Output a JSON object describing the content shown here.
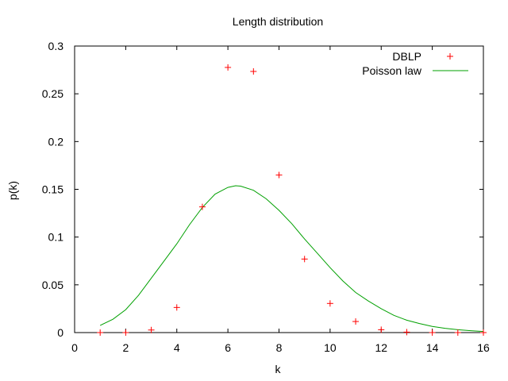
{
  "chart_data": {
    "type": "scatter",
    "title": "Length distribution",
    "xlabel": "k",
    "ylabel": "p(k)",
    "xlim": [
      0,
      16
    ],
    "ylim": [
      0,
      0.3
    ],
    "x_ticks": [
      0,
      2,
      4,
      6,
      8,
      10,
      12,
      14,
      16
    ],
    "x_tick_labels": [
      "0",
      "2",
      "4",
      "6",
      "8",
      "10",
      "12",
      "14",
      "16"
    ],
    "y_ticks": [
      0,
      0.05,
      0.1,
      0.15,
      0.2,
      0.25,
      0.3
    ],
    "y_tick_labels": [
      "0",
      "0.05",
      "0.1",
      "0.15",
      "0.2",
      "0.25",
      "0.3"
    ],
    "grid": false,
    "legend_position": "top-right",
    "series": [
      {
        "name": "DBLP",
        "style": "points",
        "marker": "+",
        "color": "#ff0000",
        "x": [
          1,
          2,
          3,
          4,
          5,
          6,
          7,
          8,
          9,
          10,
          11,
          12,
          13,
          14,
          15,
          16
        ],
        "y": [
          0.0,
          0.0,
          0.0027,
          0.0263,
          0.1316,
          0.2776,
          0.2734,
          0.165,
          0.077,
          0.0305,
          0.0116,
          0.003,
          0.0005,
          0.0,
          0.0,
          0.0
        ]
      },
      {
        "name": "Poisson law",
        "style": "line",
        "color": "#00a000",
        "x": [
          1,
          1.5,
          2,
          2.5,
          3,
          3.5,
          4,
          4.5,
          5,
          5.5,
          6,
          6.3,
          6.5,
          7,
          7.5,
          8,
          8.5,
          9,
          9.5,
          10,
          10.5,
          11,
          11.5,
          12,
          12.5,
          13,
          13.5,
          14,
          14.5,
          15,
          15.5,
          16
        ],
        "y": [
          0.0075,
          0.014,
          0.024,
          0.039,
          0.057,
          0.075,
          0.093,
          0.113,
          0.131,
          0.145,
          0.152,
          0.1537,
          0.1533,
          0.149,
          0.14,
          0.128,
          0.114,
          0.098,
          0.083,
          0.068,
          0.054,
          0.042,
          0.033,
          0.025,
          0.018,
          0.013,
          0.0095,
          0.0065,
          0.0045,
          0.003,
          0.002,
          0.0012
        ]
      }
    ]
  }
}
